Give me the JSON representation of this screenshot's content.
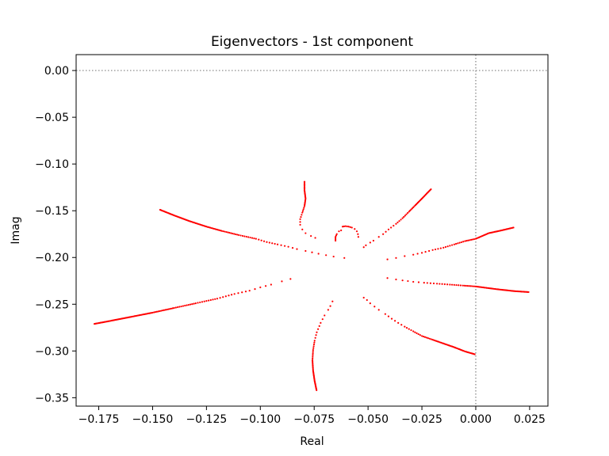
{
  "chart_data": {
    "type": "scatter",
    "title": "Eigenvectors - 1st component",
    "xlabel": "Real",
    "ylabel": "Imag",
    "xlim": [
      -0.1855,
      0.0335
    ],
    "ylim": [
      -0.359,
      0.017
    ],
    "xticks": [
      -0.175,
      -0.15,
      -0.125,
      -0.1,
      -0.075,
      -0.05,
      -0.025,
      0.0,
      0.025
    ],
    "xtick_labels": [
      "−0.175",
      "−0.150",
      "−0.125",
      "−0.100",
      "−0.075",
      "−0.050",
      "−0.025",
      "0.000",
      "0.025"
    ],
    "yticks": [
      0.0,
      -0.05,
      -0.1,
      -0.15,
      -0.2,
      -0.25,
      -0.3,
      -0.35
    ],
    "ytick_labels": [
      "0.00",
      "−0.05",
      "−0.10",
      "−0.15",
      "−0.20",
      "−0.25",
      "−0.30",
      "−0.35"
    ],
    "reference_lines": {
      "x": 0.0,
      "y": 0.0,
      "style": "dotted",
      "color": "#808080"
    },
    "grid": false,
    "legend": false,
    "marker_color": "#ff0000",
    "series": [
      {
        "points": [
          [
            -0.1465,
            -0.149
          ],
          [
            -0.14,
            -0.155
          ],
          [
            -0.133,
            -0.161
          ],
          [
            -0.125,
            -0.167
          ],
          [
            -0.118,
            -0.1715
          ],
          [
            -0.11,
            -0.176
          ],
          [
            -0.102,
            -0.18
          ],
          [
            -0.097,
            -0.1835
          ],
          [
            -0.092,
            -0.186
          ],
          [
            -0.087,
            -0.1885
          ],
          [
            -0.083,
            -0.191
          ],
          [
            -0.079,
            -0.193
          ],
          [
            -0.073,
            -0.196
          ],
          [
            -0.066,
            -0.199
          ],
          [
            -0.061,
            -0.2005
          ]
        ]
      },
      {
        "points": [
          [
            -0.177,
            -0.271
          ],
          [
            -0.17,
            -0.268
          ],
          [
            -0.16,
            -0.2635
          ],
          [
            -0.15,
            -0.259
          ],
          [
            -0.14,
            -0.254
          ],
          [
            -0.13,
            -0.249
          ],
          [
            -0.12,
            -0.244
          ],
          [
            -0.112,
            -0.239
          ],
          [
            -0.105,
            -0.2355
          ],
          [
            -0.1,
            -0.232
          ],
          [
            -0.095,
            -0.229
          ],
          [
            -0.09,
            -0.2255
          ],
          [
            -0.086,
            -0.223
          ]
        ]
      },
      {
        "points": [
          [
            -0.0795,
            -0.119
          ],
          [
            -0.0795,
            -0.128
          ],
          [
            -0.079,
            -0.137
          ],
          [
            -0.0795,
            -0.145
          ],
          [
            -0.0805,
            -0.152
          ],
          [
            -0.0815,
            -0.159
          ],
          [
            -0.0815,
            -0.165
          ],
          [
            -0.0805,
            -0.17
          ],
          [
            -0.079,
            -0.174
          ],
          [
            -0.0765,
            -0.177
          ],
          [
            -0.0745,
            -0.179
          ]
        ]
      },
      {
        "points": [
          [
            -0.0739,
            -0.342
          ],
          [
            -0.0748,
            -0.332
          ],
          [
            -0.0755,
            -0.321
          ],
          [
            -0.0758,
            -0.31
          ],
          [
            -0.0755,
            -0.299
          ],
          [
            -0.0748,
            -0.289
          ],
          [
            -0.0738,
            -0.28
          ],
          [
            -0.072,
            -0.27
          ],
          [
            -0.0702,
            -0.262
          ],
          [
            -0.0685,
            -0.256
          ],
          [
            -0.0675,
            -0.252
          ],
          [
            -0.0665,
            -0.247
          ]
        ]
      },
      {
        "points": [
          [
            -0.0208,
            -0.127
          ],
          [
            -0.0225,
            -0.131
          ],
          [
            -0.025,
            -0.137
          ],
          [
            -0.028,
            -0.144
          ],
          [
            -0.031,
            -0.151
          ],
          [
            -0.034,
            -0.158
          ],
          [
            -0.037,
            -0.164
          ],
          [
            -0.0405,
            -0.17
          ],
          [
            -0.043,
            -0.175
          ],
          [
            -0.045,
            -0.178
          ],
          [
            -0.0475,
            -0.182
          ],
          [
            -0.049,
            -0.184
          ],
          [
            -0.051,
            -0.187
          ],
          [
            -0.052,
            -0.189
          ]
        ]
      },
      {
        "points": [
          [
            0.0175,
            -0.168
          ],
          [
            0.012,
            -0.171
          ],
          [
            0.006,
            -0.174
          ],
          [
            0.0,
            -0.18
          ],
          [
            -0.005,
            -0.1825
          ],
          [
            -0.01,
            -0.186
          ],
          [
            -0.015,
            -0.1895
          ],
          [
            -0.02,
            -0.192
          ],
          [
            -0.025,
            -0.195
          ],
          [
            -0.029,
            -0.197
          ],
          [
            -0.033,
            -0.1985
          ],
          [
            -0.037,
            -0.2005
          ],
          [
            -0.041,
            -0.202
          ]
        ]
      },
      {
        "points": [
          [
            0.0245,
            -0.237
          ],
          [
            0.018,
            -0.236
          ],
          [
            0.01,
            -0.234
          ],
          [
            0.0,
            -0.231
          ],
          [
            -0.006,
            -0.23
          ],
          [
            -0.012,
            -0.229
          ],
          [
            -0.018,
            -0.228
          ],
          [
            -0.024,
            -0.227
          ],
          [
            -0.029,
            -0.226
          ],
          [
            -0.034,
            -0.2245
          ],
          [
            -0.037,
            -0.2235
          ],
          [
            -0.041,
            -0.222
          ]
        ]
      },
      {
        "points": [
          [
            -0.0005,
            -0.3035
          ],
          [
            -0.005,
            -0.3005
          ],
          [
            -0.01,
            -0.296
          ],
          [
            -0.015,
            -0.292
          ],
          [
            -0.02,
            -0.288
          ],
          [
            -0.025,
            -0.284
          ],
          [
            -0.029,
            -0.279
          ],
          [
            -0.033,
            -0.274
          ],
          [
            -0.036,
            -0.27
          ],
          [
            -0.039,
            -0.2655
          ],
          [
            -0.042,
            -0.2605
          ],
          [
            -0.045,
            -0.256
          ],
          [
            -0.047,
            -0.2525
          ],
          [
            -0.049,
            -0.249
          ],
          [
            -0.0505,
            -0.2455
          ],
          [
            -0.052,
            -0.243
          ]
        ]
      },
      {
        "points": [
          [
            -0.0651,
            -0.182
          ],
          [
            -0.0651,
            -0.178
          ],
          [
            -0.0645,
            -0.175
          ],
          [
            -0.0635,
            -0.172
          ],
          [
            -0.0625,
            -0.171
          ]
        ]
      },
      {
        "points": [
          [
            -0.0618,
            -0.167
          ],
          [
            -0.0605,
            -0.1665
          ],
          [
            -0.059,
            -0.167
          ],
          [
            -0.0575,
            -0.168
          ],
          [
            -0.0562,
            -0.1695
          ],
          [
            -0.0552,
            -0.172
          ],
          [
            -0.0547,
            -0.175
          ],
          [
            -0.0545,
            -0.178
          ]
        ]
      }
    ]
  }
}
